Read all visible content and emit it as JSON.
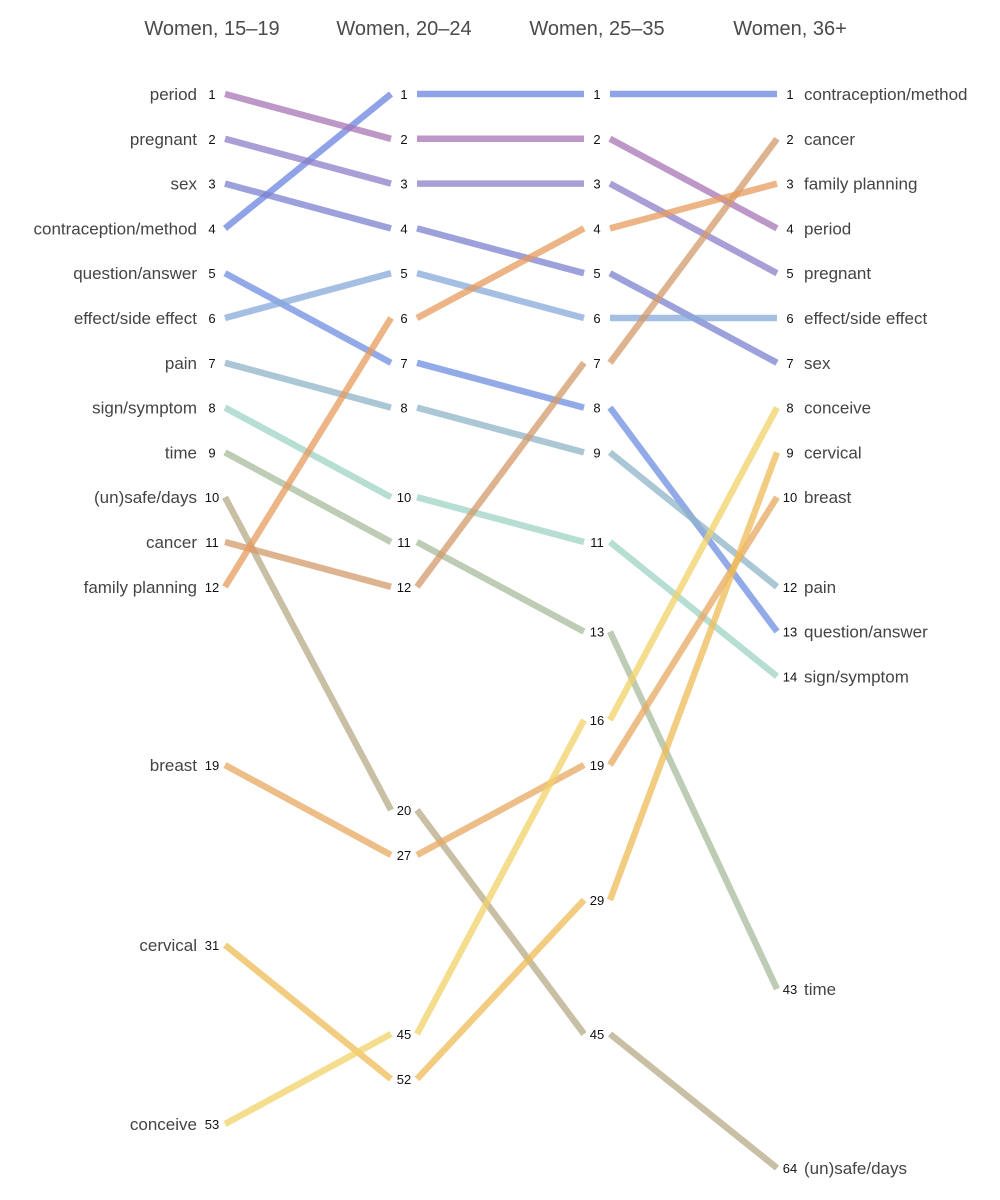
{
  "chart_data": {
    "type": "line",
    "subtype": "bump-chart",
    "groups": [
      "Women, 15–19",
      "Women, 20–24",
      "Women, 25–35",
      "Women, 36+"
    ],
    "rank_axis": "reversed",
    "grid": false,
    "legend": "none",
    "series": [
      {
        "name": "contraception/method",
        "color": "#6b84e0",
        "ranks": [
          4,
          1,
          1,
          1
        ]
      },
      {
        "name": "period",
        "color": "#a574b5",
        "ranks": [
          1,
          2,
          2,
          4
        ]
      },
      {
        "name": "pregnant",
        "color": "#8e7dc8",
        "ranks": [
          2,
          3,
          3,
          5
        ]
      },
      {
        "name": "sex",
        "color": "#7b80cf",
        "ranks": [
          3,
          4,
          5,
          7
        ]
      },
      {
        "name": "question/answer",
        "color": "#6f8de0",
        "ranks": [
          5,
          7,
          8,
          13
        ]
      },
      {
        "name": "effect/side effect",
        "color": "#86a9da",
        "ranks": [
          6,
          5,
          6,
          6
        ]
      },
      {
        "name": "pain",
        "color": "#8fb3c7",
        "ranks": [
          7,
          8,
          9,
          12
        ]
      },
      {
        "name": "sign/symptom",
        "color": "#9fd3c4",
        "ranks": [
          8,
          10,
          11,
          14
        ]
      },
      {
        "name": "time",
        "color": "#a8bb9c",
        "ranks": [
          9,
          11,
          13,
          43
        ]
      },
      {
        "name": "(un)safe/days",
        "color": "#b7a985",
        "ranks": [
          10,
          20,
          45,
          64
        ]
      },
      {
        "name": "cancer",
        "color": "#d39a6a",
        "ranks": [
          11,
          12,
          7,
          2
        ]
      },
      {
        "name": "family planning",
        "color": "#e79b5d",
        "ranks": [
          12,
          6,
          4,
          3
        ]
      },
      {
        "name": "breast",
        "color": "#e7a85f",
        "ranks": [
          19,
          27,
          19,
          10
        ]
      },
      {
        "name": "cervical",
        "color": "#eebc57",
        "ranks": [
          31,
          52,
          29,
          9
        ]
      },
      {
        "name": "conceive",
        "color": "#f2d168",
        "ranks": [
          53,
          45,
          16,
          8
        ]
      }
    ]
  }
}
